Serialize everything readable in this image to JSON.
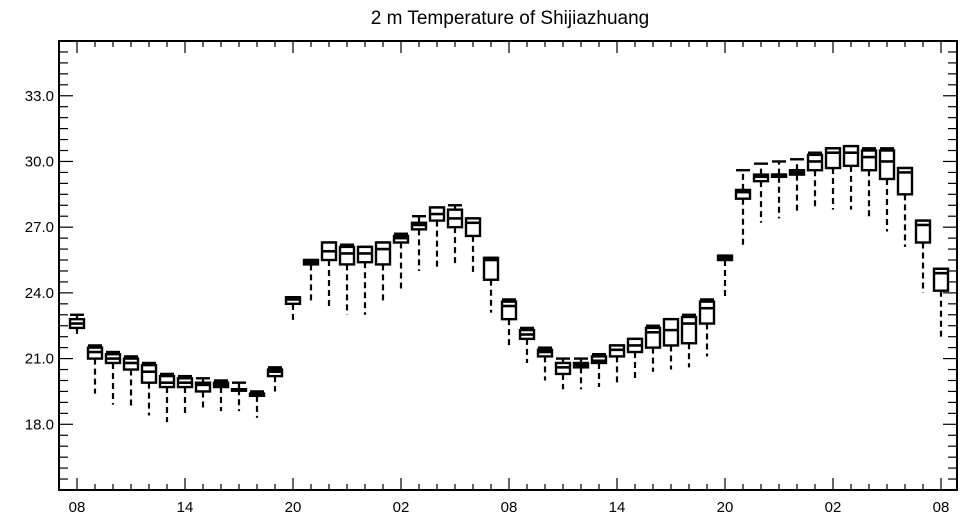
{
  "chart_data": {
    "type": "box",
    "title": "2 m Temperature of Shijiazhuang",
    "xlabel": "",
    "ylabel": "",
    "ylim": [
      15.0,
      35.5
    ],
    "yticks": [
      18.0,
      21.0,
      24.0,
      27.0,
      30.0,
      33.0
    ],
    "ytick_labels": [
      "18.0",
      "21.0",
      "24.0",
      "27.0",
      "30.0",
      "33.0"
    ],
    "xlim": [
      0,
      48
    ],
    "xticks": [
      0,
      6,
      12,
      18,
      24,
      30,
      36,
      42,
      48
    ],
    "xtick_labels": [
      "08",
      "14",
      "20",
      "02",
      "08",
      "14",
      "20",
      "02",
      "08"
    ],
    "series": [
      {
        "x": 0,
        "min": 22.1,
        "q1": 22.4,
        "median": 22.6,
        "q3": 22.8,
        "max": 23.0
      },
      {
        "x": 1,
        "min": 19.4,
        "q1": 21.0,
        "median": 21.3,
        "q3": 21.5,
        "max": 21.6
      },
      {
        "x": 2,
        "min": 18.9,
        "q1": 20.8,
        "median": 21.0,
        "q3": 21.2,
        "max": 21.3
      },
      {
        "x": 3,
        "min": 18.8,
        "q1": 20.5,
        "median": 20.8,
        "q3": 21.0,
        "max": 21.1
      },
      {
        "x": 4,
        "min": 18.4,
        "q1": 19.9,
        "median": 20.4,
        "q3": 20.7,
        "max": 20.8
      },
      {
        "x": 5,
        "min": 18.1,
        "q1": 19.7,
        "median": 19.9,
        "q3": 20.2,
        "max": 20.3
      },
      {
        "x": 6,
        "min": 18.4,
        "q1": 19.7,
        "median": 19.9,
        "q3": 20.1,
        "max": 20.2
      },
      {
        "x": 7,
        "min": 18.6,
        "q1": 19.5,
        "median": 19.8,
        "q3": 19.9,
        "max": 20.1
      },
      {
        "x": 8,
        "min": 18.6,
        "q1": 19.7,
        "median": 19.8,
        "q3": 19.9,
        "max": 20.0
      },
      {
        "x": 9,
        "min": 18.6,
        "q1": 19.6,
        "median": 19.6,
        "q3": 19.6,
        "max": 19.9
      },
      {
        "x": 10,
        "min": 18.3,
        "q1": 19.3,
        "median": 19.4,
        "q3": 19.4,
        "max": 19.5
      },
      {
        "x": 11,
        "min": 19.5,
        "q1": 20.2,
        "median": 20.4,
        "q3": 20.5,
        "max": 20.6
      },
      {
        "x": 12,
        "min": 22.7,
        "q1": 23.5,
        "median": 23.7,
        "q3": 23.8,
        "max": 23.8
      },
      {
        "x": 13,
        "min": 23.5,
        "q1": 25.3,
        "median": 25.4,
        "q3": 25.5,
        "max": 25.5
      },
      {
        "x": 14,
        "min": 23.3,
        "q1": 25.5,
        "median": 25.9,
        "q3": 26.3,
        "max": 26.3
      },
      {
        "x": 15,
        "min": 23.0,
        "q1": 25.3,
        "median": 25.8,
        "q3": 26.1,
        "max": 26.2
      },
      {
        "x": 16,
        "min": 23.0,
        "q1": 25.4,
        "median": 25.8,
        "q3": 26.1,
        "max": 26.1
      },
      {
        "x": 17,
        "min": 23.5,
        "q1": 25.3,
        "median": 26.0,
        "q3": 26.3,
        "max": 26.3
      },
      {
        "x": 18,
        "min": 24.1,
        "q1": 26.3,
        "median": 26.5,
        "q3": 26.6,
        "max": 26.7
      },
      {
        "x": 19,
        "min": 25.0,
        "q1": 26.9,
        "median": 27.1,
        "q3": 27.2,
        "max": 27.5
      },
      {
        "x": 20,
        "min": 25.1,
        "q1": 27.3,
        "median": 27.6,
        "q3": 27.9,
        "max": 27.9
      },
      {
        "x": 21,
        "min": 25.2,
        "q1": 27.0,
        "median": 27.4,
        "q3": 27.8,
        "max": 28.0
      },
      {
        "x": 22,
        "min": 24.9,
        "q1": 26.6,
        "median": 27.2,
        "q3": 27.4,
        "max": 27.4
      },
      {
        "x": 23,
        "min": 23.1,
        "q1": 24.6,
        "median": 25.5,
        "q3": 25.6,
        "max": 25.6
      },
      {
        "x": 24,
        "min": 21.6,
        "q1": 22.8,
        "median": 23.4,
        "q3": 23.6,
        "max": 23.7
      },
      {
        "x": 25,
        "min": 20.8,
        "q1": 21.9,
        "median": 22.1,
        "q3": 22.3,
        "max": 22.4
      },
      {
        "x": 26,
        "min": 20.0,
        "q1": 21.1,
        "median": 21.3,
        "q3": 21.4,
        "max": 21.5
      },
      {
        "x": 27,
        "min": 19.6,
        "q1": 20.3,
        "median": 20.6,
        "q3": 20.8,
        "max": 21.0
      },
      {
        "x": 28,
        "min": 19.6,
        "q1": 20.6,
        "median": 20.7,
        "q3": 20.8,
        "max": 21.0
      },
      {
        "x": 29,
        "min": 19.7,
        "q1": 20.8,
        "median": 20.9,
        "q3": 21.1,
        "max": 21.2
      },
      {
        "x": 30,
        "min": 19.9,
        "q1": 21.1,
        "median": 21.4,
        "q3": 21.6,
        "max": 21.6
      },
      {
        "x": 31,
        "min": 20.1,
        "q1": 21.3,
        "median": 21.6,
        "q3": 21.9,
        "max": 21.9
      },
      {
        "x": 32,
        "min": 20.4,
        "q1": 21.5,
        "median": 22.2,
        "q3": 22.4,
        "max": 22.5
      },
      {
        "x": 33,
        "min": 20.5,
        "q1": 21.6,
        "median": 22.3,
        "q3": 22.8,
        "max": 22.8
      },
      {
        "x": 34,
        "min": 20.6,
        "q1": 21.7,
        "median": 22.6,
        "q3": 22.9,
        "max": 23.0
      },
      {
        "x": 35,
        "min": 21.1,
        "q1": 22.6,
        "median": 23.3,
        "q3": 23.6,
        "max": 23.7
      },
      {
        "x": 36,
        "min": 23.8,
        "q1": 25.5,
        "median": 25.6,
        "q3": 25.7,
        "max": 25.7
      },
      {
        "x": 37,
        "min": 26.1,
        "q1": 28.3,
        "median": 28.6,
        "q3": 28.7,
        "max": 29.6
      },
      {
        "x": 38,
        "min": 27.2,
        "q1": 29.1,
        "median": 29.3,
        "q3": 29.4,
        "max": 29.9
      },
      {
        "x": 39,
        "min": 27.4,
        "q1": 29.3,
        "median": 29.4,
        "q3": 29.4,
        "max": 30.0
      },
      {
        "x": 40,
        "min": 27.7,
        "q1": 29.4,
        "median": 29.5,
        "q3": 29.6,
        "max": 30.1
      },
      {
        "x": 41,
        "min": 27.9,
        "q1": 29.6,
        "median": 30.0,
        "q3": 30.3,
        "max": 30.4
      },
      {
        "x": 42,
        "min": 27.8,
        "q1": 29.7,
        "median": 30.4,
        "q3": 30.6,
        "max": 30.6
      },
      {
        "x": 43,
        "min": 27.8,
        "q1": 29.8,
        "median": 30.4,
        "q3": 30.7,
        "max": 30.7
      },
      {
        "x": 44,
        "min": 27.4,
        "q1": 29.6,
        "median": 30.2,
        "q3": 30.5,
        "max": 30.6
      },
      {
        "x": 45,
        "min": 26.8,
        "q1": 29.2,
        "median": 30.0,
        "q3": 30.5,
        "max": 30.6
      },
      {
        "x": 46,
        "min": 26.1,
        "q1": 28.5,
        "median": 29.5,
        "q3": 29.7,
        "max": 29.7
      },
      {
        "x": 47,
        "min": 24.0,
        "q1": 26.3,
        "median": 27.1,
        "q3": 27.3,
        "max": 27.3
      },
      {
        "x": 48,
        "min": 22.0,
        "q1": 24.1,
        "median": 24.9,
        "q3": 25.1,
        "max": 25.1
      }
    ]
  }
}
